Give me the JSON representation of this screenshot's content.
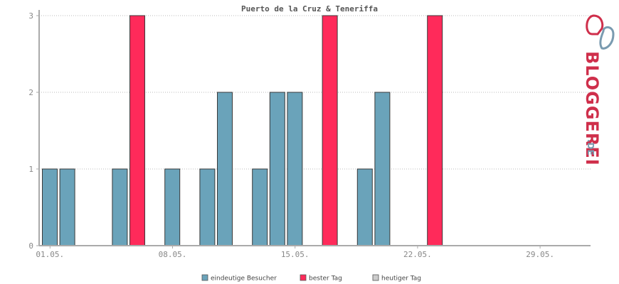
{
  "chart_data": {
    "type": "bar",
    "title": "Puerto de la Cruz & Teneriffa",
    "x_tick_labels": [
      "01.05.",
      "08.05.",
      "15.05.",
      "22.05.",
      "29.05."
    ],
    "x_tick_days": [
      1,
      8,
      15,
      22,
      29
    ],
    "day_range": [
      1,
      31
    ],
    "ylim": [
      0,
      3
    ],
    "y_ticks": [
      0,
      1,
      2,
      3
    ],
    "grid": true,
    "series": [
      {
        "name": "eindeutige Besucher",
        "color": "#6aa3ba",
        "points": [
          {
            "day": 1,
            "value": 1
          },
          {
            "day": 2,
            "value": 1
          },
          {
            "day": 5,
            "value": 1
          },
          {
            "day": 8,
            "value": 1
          },
          {
            "day": 10,
            "value": 1
          },
          {
            "day": 11,
            "value": 2
          },
          {
            "day": 13,
            "value": 1
          },
          {
            "day": 14,
            "value": 2
          },
          {
            "day": 15,
            "value": 2
          },
          {
            "day": 19,
            "value": 1
          },
          {
            "day": 20,
            "value": 2
          }
        ]
      },
      {
        "name": "bester Tag",
        "color": "#ff2a5a",
        "points": [
          {
            "day": 6,
            "value": 3
          },
          {
            "day": 17,
            "value": 3
          },
          {
            "day": 23,
            "value": 3
          }
        ]
      },
      {
        "name": "heutiger Tag",
        "color": "#cccccc",
        "points": []
      }
    ],
    "legend_position": "bottom-center"
  },
  "logo": {
    "text": "BLOGGEREI",
    "suffix": ".DE",
    "icon": "bloggerei-logo-icon",
    "color_primary": "#cf2f4b",
    "color_secondary": "#7a9bb0"
  }
}
